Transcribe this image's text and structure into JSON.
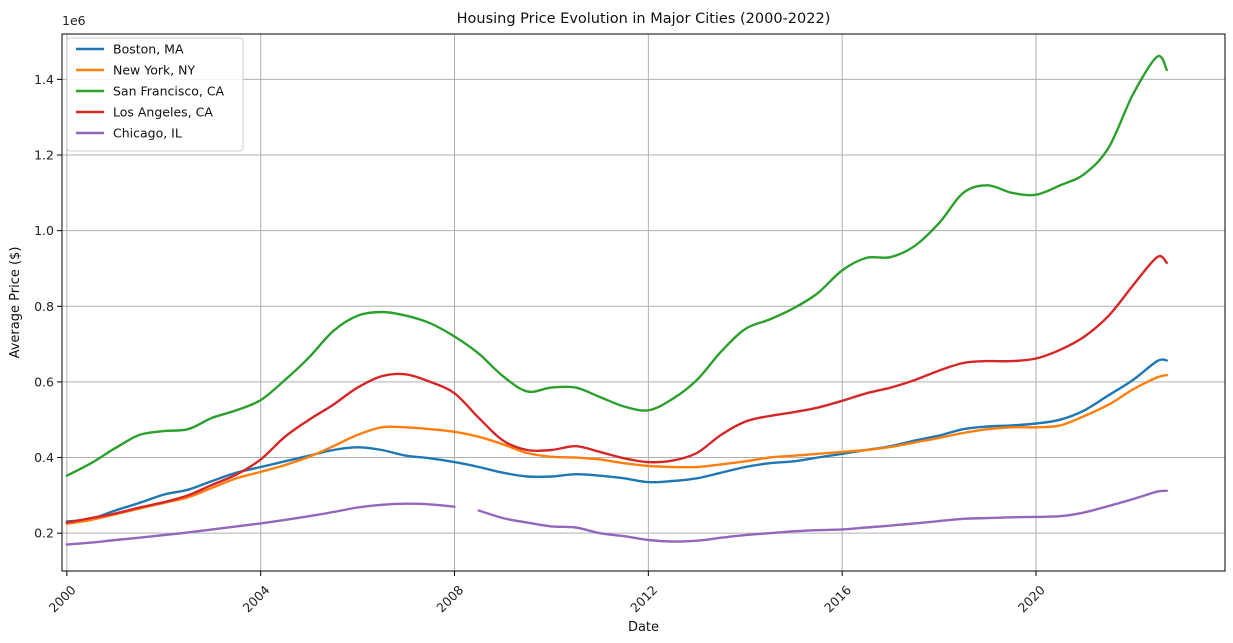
{
  "chart_data": {
    "type": "line",
    "title": "Housing Price Evolution in Major Cities (2000-2022)",
    "xlabel": "Date",
    "ylabel": "Average Price ($)",
    "y_offset_label": "1e6",
    "xlim": [
      1999.9,
      2023.9
    ],
    "ylim": [
      0.1,
      1.52
    ],
    "x_ticks": [
      2000,
      2004,
      2008,
      2012,
      2016,
      2020
    ],
    "x_tick_labels": [
      "2000",
      "2004",
      "2008",
      "2012",
      "2016",
      "2020"
    ],
    "y_ticks": [
      0.2,
      0.4,
      0.6,
      0.8,
      1.0,
      1.2,
      1.4
    ],
    "y_tick_labels": [
      "0.2",
      "0.4",
      "0.6",
      "0.8",
      "1.0",
      "1.2",
      "1.4"
    ],
    "grid": true,
    "legend_position": "top-left",
    "series": [
      {
        "name": "Boston, MA",
        "color": "#1f77b4",
        "points": [
          [
            2000.0,
            0.231
          ],
          [
            2000.5,
            0.238
          ],
          [
            2001.0,
            0.26
          ],
          [
            2001.5,
            0.28
          ],
          [
            2002.0,
            0.302
          ],
          [
            2002.5,
            0.315
          ],
          [
            2003.0,
            0.338
          ],
          [
            2003.5,
            0.36
          ],
          [
            2004.0,
            0.375
          ],
          [
            2004.5,
            0.39
          ],
          [
            2005.0,
            0.405
          ],
          [
            2005.5,
            0.42
          ],
          [
            2006.0,
            0.427
          ],
          [
            2006.5,
            0.42
          ],
          [
            2007.0,
            0.405
          ],
          [
            2007.5,
            0.398
          ],
          [
            2008.0,
            0.388
          ],
          [
            2008.5,
            0.375
          ],
          [
            2009.0,
            0.36
          ],
          [
            2009.5,
            0.35
          ],
          [
            2010.0,
            0.35
          ],
          [
            2010.5,
            0.356
          ],
          [
            2011.0,
            0.352
          ],
          [
            2011.5,
            0.345
          ],
          [
            2012.0,
            0.335
          ],
          [
            2012.5,
            0.338
          ],
          [
            2013.0,
            0.345
          ],
          [
            2013.5,
            0.36
          ],
          [
            2014.0,
            0.375
          ],
          [
            2014.5,
            0.385
          ],
          [
            2015.0,
            0.39
          ],
          [
            2015.5,
            0.4
          ],
          [
            2016.0,
            0.41
          ],
          [
            2016.5,
            0.42
          ],
          [
            2017.0,
            0.43
          ],
          [
            2017.5,
            0.445
          ],
          [
            2018.0,
            0.458
          ],
          [
            2018.5,
            0.475
          ],
          [
            2019.0,
            0.482
          ],
          [
            2019.5,
            0.485
          ],
          [
            2020.0,
            0.49
          ],
          [
            2020.5,
            0.5
          ],
          [
            2021.0,
            0.525
          ],
          [
            2021.5,
            0.565
          ],
          [
            2022.0,
            0.605
          ],
          [
            2022.5,
            0.655
          ],
          [
            2022.7,
            0.657
          ]
        ]
      },
      {
        "name": "New York, NY",
        "color": "#ff7f0e",
        "points": [
          [
            2000.0,
            0.225
          ],
          [
            2000.5,
            0.235
          ],
          [
            2001.0,
            0.25
          ],
          [
            2001.5,
            0.265
          ],
          [
            2002.0,
            0.28
          ],
          [
            2002.5,
            0.295
          ],
          [
            2003.0,
            0.32
          ],
          [
            2003.5,
            0.345
          ],
          [
            2004.0,
            0.362
          ],
          [
            2004.5,
            0.38
          ],
          [
            2005.0,
            0.402
          ],
          [
            2005.5,
            0.43
          ],
          [
            2006.0,
            0.46
          ],
          [
            2006.5,
            0.48
          ],
          [
            2007.0,
            0.48
          ],
          [
            2007.5,
            0.475
          ],
          [
            2008.0,
            0.468
          ],
          [
            2008.5,
            0.455
          ],
          [
            2009.0,
            0.435
          ],
          [
            2009.5,
            0.412
          ],
          [
            2010.0,
            0.402
          ],
          [
            2010.5,
            0.4
          ],
          [
            2011.0,
            0.395
          ],
          [
            2011.5,
            0.385
          ],
          [
            2012.0,
            0.378
          ],
          [
            2012.5,
            0.375
          ],
          [
            2013.0,
            0.375
          ],
          [
            2013.5,
            0.382
          ],
          [
            2014.0,
            0.39
          ],
          [
            2014.5,
            0.4
          ],
          [
            2015.0,
            0.405
          ],
          [
            2015.5,
            0.41
          ],
          [
            2016.0,
            0.415
          ],
          [
            2016.5,
            0.42
          ],
          [
            2017.0,
            0.428
          ],
          [
            2017.5,
            0.44
          ],
          [
            2018.0,
            0.452
          ],
          [
            2018.5,
            0.465
          ],
          [
            2019.0,
            0.475
          ],
          [
            2019.5,
            0.48
          ],
          [
            2020.0,
            0.48
          ],
          [
            2020.5,
            0.485
          ],
          [
            2021.0,
            0.51
          ],
          [
            2021.5,
            0.54
          ],
          [
            2022.0,
            0.58
          ],
          [
            2022.5,
            0.612
          ],
          [
            2022.7,
            0.618
          ]
        ]
      },
      {
        "name": "San Francisco, CA",
        "color": "#2ca02c",
        "points": [
          [
            2000.0,
            0.352
          ],
          [
            2000.5,
            0.385
          ],
          [
            2001.0,
            0.425
          ],
          [
            2001.5,
            0.46
          ],
          [
            2002.0,
            0.47
          ],
          [
            2002.5,
            0.475
          ],
          [
            2003.0,
            0.505
          ],
          [
            2003.5,
            0.525
          ],
          [
            2004.0,
            0.552
          ],
          [
            2004.5,
            0.605
          ],
          [
            2005.0,
            0.665
          ],
          [
            2005.5,
            0.735
          ],
          [
            2006.0,
            0.775
          ],
          [
            2006.5,
            0.785
          ],
          [
            2007.0,
            0.775
          ],
          [
            2007.5,
            0.755
          ],
          [
            2008.0,
            0.72
          ],
          [
            2008.5,
            0.675
          ],
          [
            2009.0,
            0.615
          ],
          [
            2009.5,
            0.575
          ],
          [
            2010.0,
            0.585
          ],
          [
            2010.5,
            0.585
          ],
          [
            2011.0,
            0.56
          ],
          [
            2011.5,
            0.535
          ],
          [
            2012.0,
            0.525
          ],
          [
            2012.5,
            0.555
          ],
          [
            2013.0,
            0.605
          ],
          [
            2013.5,
            0.68
          ],
          [
            2014.0,
            0.74
          ],
          [
            2014.5,
            0.765
          ],
          [
            2015.0,
            0.795
          ],
          [
            2015.5,
            0.835
          ],
          [
            2016.0,
            0.895
          ],
          [
            2016.5,
            0.928
          ],
          [
            2017.0,
            0.93
          ],
          [
            2017.5,
            0.96
          ],
          [
            2018.0,
            1.02
          ],
          [
            2018.5,
            1.1
          ],
          [
            2019.0,
            1.12
          ],
          [
            2019.5,
            1.1
          ],
          [
            2020.0,
            1.095
          ],
          [
            2020.5,
            1.12
          ],
          [
            2021.0,
            1.15
          ],
          [
            2021.5,
            1.22
          ],
          [
            2022.0,
            1.36
          ],
          [
            2022.5,
            1.46
          ],
          [
            2022.7,
            1.425
          ]
        ]
      },
      {
        "name": "Los Angeles, CA",
        "color": "#d62728",
        "points": [
          [
            2000.0,
            0.228
          ],
          [
            2000.5,
            0.24
          ],
          [
            2001.0,
            0.252
          ],
          [
            2001.5,
            0.268
          ],
          [
            2002.0,
            0.282
          ],
          [
            2002.5,
            0.3
          ],
          [
            2003.0,
            0.328
          ],
          [
            2003.5,
            0.355
          ],
          [
            2004.0,
            0.395
          ],
          [
            2004.5,
            0.455
          ],
          [
            2005.0,
            0.5
          ],
          [
            2005.5,
            0.54
          ],
          [
            2006.0,
            0.585
          ],
          [
            2006.5,
            0.615
          ],
          [
            2007.0,
            0.62
          ],
          [
            2007.5,
            0.6
          ],
          [
            2008.0,
            0.57
          ],
          [
            2008.5,
            0.505
          ],
          [
            2009.0,
            0.445
          ],
          [
            2009.5,
            0.42
          ],
          [
            2010.0,
            0.42
          ],
          [
            2010.5,
            0.43
          ],
          [
            2011.0,
            0.415
          ],
          [
            2011.5,
            0.398
          ],
          [
            2012.0,
            0.388
          ],
          [
            2012.5,
            0.392
          ],
          [
            2013.0,
            0.412
          ],
          [
            2013.5,
            0.46
          ],
          [
            2014.0,
            0.495
          ],
          [
            2014.5,
            0.51
          ],
          [
            2015.0,
            0.52
          ],
          [
            2015.5,
            0.532
          ],
          [
            2016.0,
            0.55
          ],
          [
            2016.5,
            0.57
          ],
          [
            2017.0,
            0.585
          ],
          [
            2017.5,
            0.605
          ],
          [
            2018.0,
            0.63
          ],
          [
            2018.5,
            0.65
          ],
          [
            2019.0,
            0.655
          ],
          [
            2019.5,
            0.655
          ],
          [
            2020.0,
            0.662
          ],
          [
            2020.5,
            0.685
          ],
          [
            2021.0,
            0.72
          ],
          [
            2021.5,
            0.775
          ],
          [
            2022.0,
            0.855
          ],
          [
            2022.5,
            0.93
          ],
          [
            2022.7,
            0.915
          ]
        ]
      },
      {
        "name": "Chicago, IL",
        "color": "#9467bd",
        "points": [
          [
            2000.0,
            0.17
          ],
          [
            2000.5,
            0.175
          ],
          [
            2001.0,
            0.182
          ],
          [
            2001.5,
            0.188
          ],
          [
            2002.0,
            0.195
          ],
          [
            2002.5,
            0.202
          ],
          [
            2003.0,
            0.21
          ],
          [
            2003.5,
            0.218
          ],
          [
            2004.0,
            0.226
          ],
          [
            2004.5,
            0.235
          ],
          [
            2005.0,
            0.245
          ],
          [
            2005.5,
            0.256
          ],
          [
            2006.0,
            0.268
          ],
          [
            2006.5,
            0.275
          ],
          [
            2007.0,
            0.278
          ],
          [
            2007.5,
            0.276
          ],
          [
            2008.0,
            0.27
          ],
          null,
          [
            2008.5,
            0.26
          ],
          [
            2009.0,
            0.24
          ],
          [
            2009.5,
            0.228
          ],
          [
            2010.0,
            0.218
          ],
          [
            2010.5,
            0.215
          ],
          [
            2011.0,
            0.2
          ],
          [
            2011.5,
            0.192
          ],
          [
            2012.0,
            0.182
          ],
          [
            2012.5,
            0.178
          ],
          [
            2013.0,
            0.18
          ],
          [
            2013.5,
            0.188
          ],
          [
            2014.0,
            0.195
          ],
          [
            2014.5,
            0.2
          ],
          [
            2015.0,
            0.205
          ],
          [
            2015.5,
            0.208
          ],
          [
            2016.0,
            0.21
          ],
          [
            2016.5,
            0.215
          ],
          [
            2017.0,
            0.22
          ],
          [
            2017.5,
            0.226
          ],
          [
            2018.0,
            0.232
          ],
          [
            2018.5,
            0.238
          ],
          [
            2019.0,
            0.24
          ],
          [
            2019.5,
            0.242
          ],
          [
            2020.0,
            0.243
          ],
          [
            2020.5,
            0.245
          ],
          [
            2021.0,
            0.255
          ],
          [
            2021.5,
            0.272
          ],
          [
            2022.0,
            0.29
          ],
          [
            2022.5,
            0.31
          ],
          [
            2022.7,
            0.312
          ]
        ]
      }
    ]
  }
}
